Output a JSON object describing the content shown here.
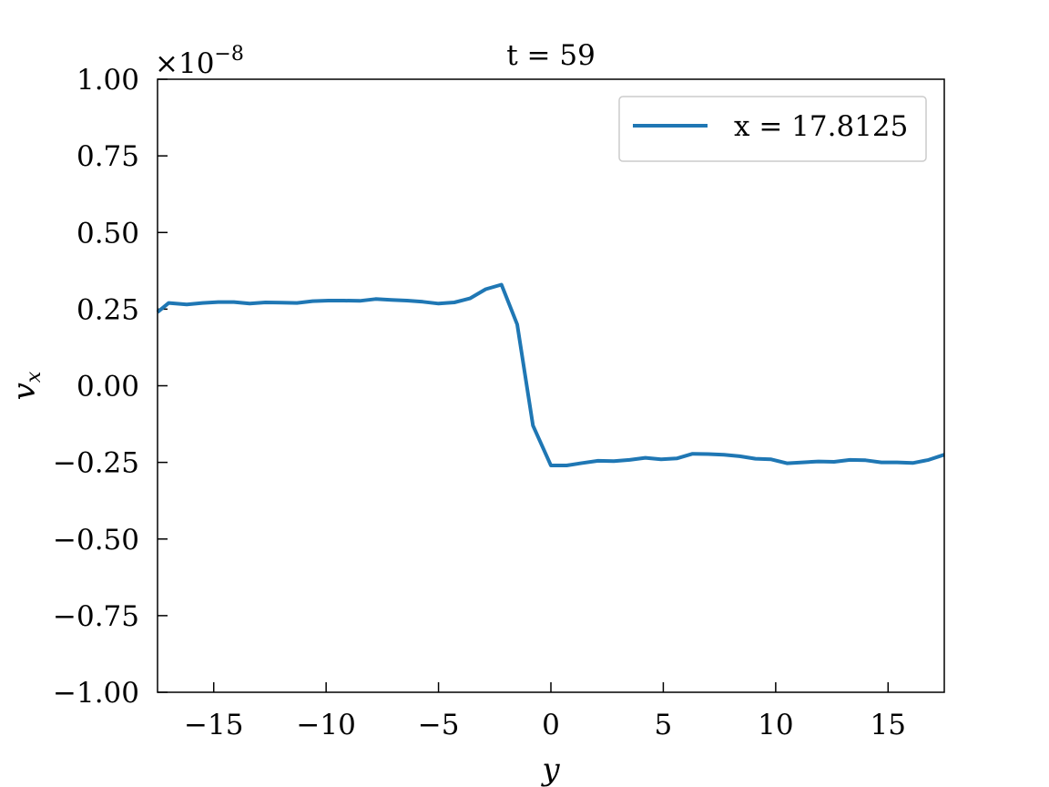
{
  "chart_data": {
    "type": "line",
    "title": "t = 59",
    "xlabel": "y",
    "ylabel_main": "v",
    "ylabel_sub": "x",
    "offset_text": {
      "base": "×10",
      "exponent": "−8"
    },
    "xlim": [
      -17.5,
      17.5
    ],
    "ylim": [
      -1.0,
      1.0
    ],
    "xticks": [
      -15,
      -10,
      -5,
      0,
      5,
      10,
      15
    ],
    "xtick_labels": [
      "−15",
      "−10",
      "−5",
      "0",
      "5",
      "10",
      "15"
    ],
    "yticks": [
      1.0,
      0.75,
      0.5,
      0.25,
      0.0,
      -0.25,
      -0.5,
      -0.75,
      -1.0
    ],
    "ytick_labels": [
      "1.00",
      "0.75",
      "0.50",
      "0.25",
      "0.00",
      "−0.25",
      "−0.50",
      "−0.75",
      "−1.00"
    ],
    "legend_position": "top-right",
    "grid": false,
    "series": [
      {
        "name": "x = 17.8125",
        "color": "#1f77b4",
        "x": [
          -17.5,
          -17.0,
          -16.2,
          -15.5,
          -14.8,
          -14.1,
          -13.4,
          -12.7,
          -12.0,
          -11.3,
          -10.6,
          -9.9,
          -9.2,
          -8.5,
          -7.8,
          -7.1,
          -6.4,
          -5.7,
          -5.0,
          -4.3,
          -3.6,
          -2.9,
          -2.2,
          -1.5,
          -0.8,
          0.0,
          0.7,
          1.4,
          2.1,
          2.8,
          3.5,
          4.2,
          4.9,
          5.6,
          6.3,
          7.0,
          7.7,
          8.4,
          9.1,
          9.8,
          10.5,
          11.2,
          11.9,
          12.6,
          13.3,
          14.0,
          14.7,
          15.4,
          16.1,
          16.8,
          17.5
        ],
        "y": [
          0.24,
          0.27,
          0.265,
          0.27,
          0.273,
          0.273,
          0.268,
          0.272,
          0.271,
          0.27,
          0.276,
          0.278,
          0.278,
          0.277,
          0.283,
          0.28,
          0.278,
          0.274,
          0.268,
          0.272,
          0.285,
          0.315,
          0.33,
          0.2,
          -0.13,
          -0.26,
          -0.26,
          -0.252,
          -0.245,
          -0.246,
          -0.242,
          -0.235,
          -0.24,
          -0.237,
          -0.222,
          -0.223,
          -0.225,
          -0.23,
          -0.238,
          -0.24,
          -0.253,
          -0.25,
          -0.247,
          -0.248,
          -0.242,
          -0.243,
          -0.25,
          -0.25,
          -0.252,
          -0.242,
          -0.225
        ]
      }
    ]
  }
}
